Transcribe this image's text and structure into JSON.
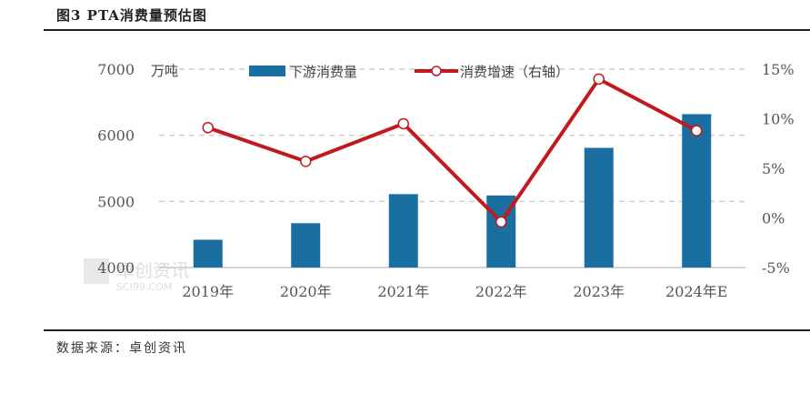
{
  "header": {
    "title": "图3 PTA消费量预估图"
  },
  "footer": {
    "source": "数据来源：卓创资讯"
  },
  "watermark": {
    "cn": "卓创资讯",
    "en": "SCI99.COM"
  },
  "chart_data": {
    "type": "bar",
    "categories": [
      "2019年",
      "2020年",
      "2021年",
      "2022年",
      "2023年",
      "2024年E"
    ],
    "series": [
      {
        "name": "下游消费量",
        "type": "bar",
        "axis": "left",
        "color": "#1a6fa0",
        "values": [
          4420,
          4670,
          5110,
          5090,
          5810,
          6320
        ]
      },
      {
        "name": "消费增速（右轴）",
        "type": "line",
        "axis": "right",
        "color": "#c0191e",
        "values": [
          9.1,
          5.7,
          9.5,
          -0.4,
          14.0,
          8.8
        ]
      }
    ],
    "y_left": {
      "unit": "万吨",
      "lim": [
        4000,
        7000
      ],
      "ticks": [
        "4000",
        "5000",
        "6000",
        "7000"
      ]
    },
    "y_right": {
      "lim": [
        -5,
        15
      ],
      "ticks": [
        "-5%",
        "0%",
        "5%",
        "10%",
        "15%"
      ]
    },
    "grid": true,
    "legend": "top"
  }
}
